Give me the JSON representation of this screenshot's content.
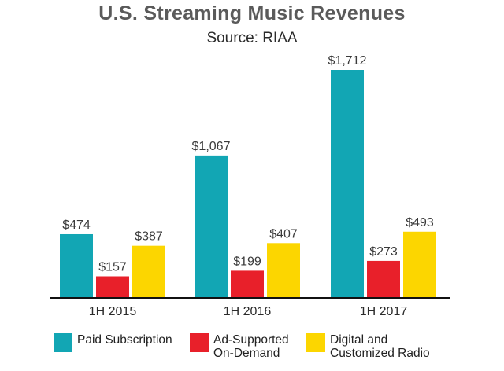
{
  "chart_data": {
    "type": "bar",
    "title": "U.S. Streaming Music Revenues",
    "subtitle": "Source: RIAA",
    "categories": [
      "1H 2015",
      "1H 2016",
      "1H 2017"
    ],
    "series": [
      {
        "name": "Paid Subscription",
        "color": "#12a6b4",
        "values": [
          474,
          1067,
          1712
        ],
        "labels": [
          "$474",
          "$1,067",
          "$1,712"
        ]
      },
      {
        "name": "Ad-Supported\nOn-Demand",
        "color": "#e8202a",
        "values": [
          157,
          199,
          273
        ],
        "labels": [
          "$157",
          "$199",
          "$273"
        ]
      },
      {
        "name": "Digital and\nCustomized Radio",
        "color": "#fcd600",
        "values": [
          387,
          407,
          493
        ],
        "labels": [
          "$387",
          "$407",
          "$493"
        ]
      }
    ],
    "ylim": [
      0,
      1712
    ],
    "grid": false,
    "legend": "bottom"
  }
}
